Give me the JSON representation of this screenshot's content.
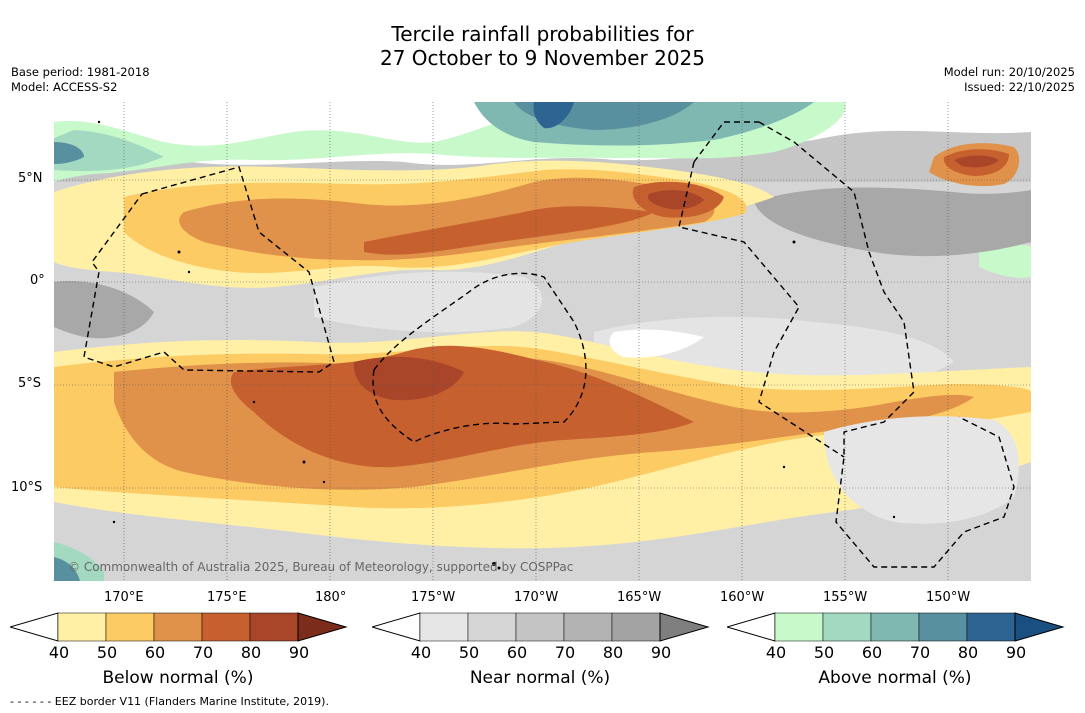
{
  "title_line1": "Tercile rainfall probabilities for",
  "title_line2": "27 October to 9 November 2025",
  "base_period": "Base period: 1981-2018",
  "model": "Model: ACCESS-S2",
  "model_run": "Model run: 20/10/2025",
  "issued": "Issued: 22/10/2025",
  "copyright": "© Commonwealth of Australia 2025, Bureau of Meteorology, supported by COSPPac",
  "lat_labels": [
    "5°N",
    "0°",
    "5°S",
    "10°S"
  ],
  "lon_labels": [
    "170°E",
    "175°E",
    "180°",
    "175°W",
    "170°W",
    "165°W",
    "160°W",
    "155°W",
    "150°W"
  ],
  "colorbars": [
    {
      "label": "Below normal (%)",
      "ticks": [
        "40",
        "50",
        "60",
        "70",
        "80",
        "90"
      ],
      "colors": [
        "#fff0a6",
        "#fdcb63",
        "#e0924a",
        "#c6602f",
        "#a9462a",
        "#7c2c1a"
      ]
    },
    {
      "label": "Near normal (%)",
      "ticks": [
        "40",
        "50",
        "60",
        "70",
        "80",
        "90"
      ],
      "colors": [
        "#e6e6e6",
        "#d5d5d5",
        "#c4c4c4",
        "#b3b3b3",
        "#a3a3a3",
        "#7f7f7f"
      ]
    },
    {
      "label": "Above normal (%)",
      "ticks": [
        "40",
        "50",
        "60",
        "70",
        "80",
        "90"
      ],
      "colors": [
        "#c7f9cb",
        "#a3d9c0",
        "#7eb8b0",
        "#5890a0",
        "#2e6491",
        "#1a4f82"
      ]
    }
  ],
  "footnote": "- -  - -  - - EEZ border V11 (Flanders Marine Institute, 2019)."
}
